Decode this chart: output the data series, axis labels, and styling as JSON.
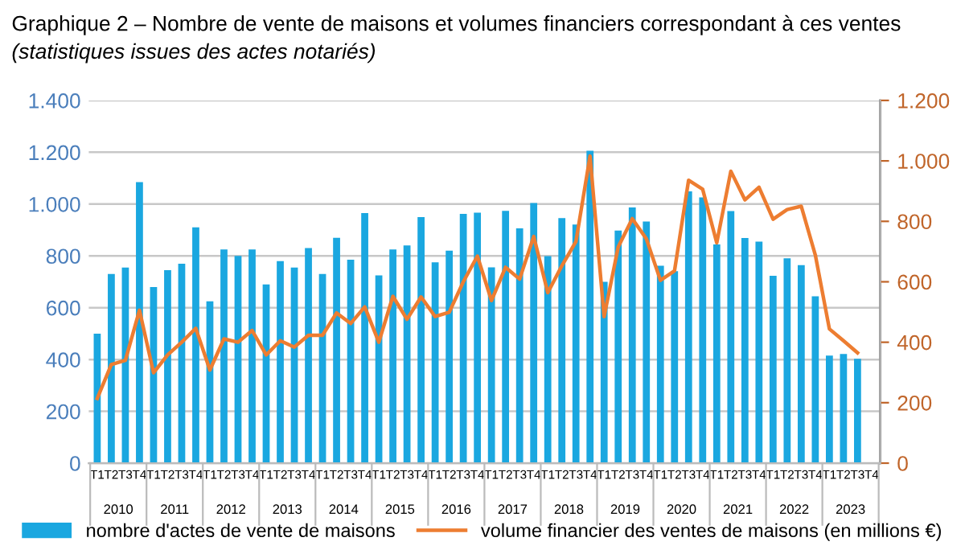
{
  "chart_data": {
    "type": "bar",
    "title": "Graphique 2 – Nombre de vente de maisons et volumes financiers correspondant à ces ventes",
    "subtitle": "(statistiques issues des actes notariés)",
    "categories": [
      "T1",
      "T2",
      "T3",
      "T4",
      "T1",
      "T2",
      "T3",
      "T4",
      "T1",
      "T2",
      "T3",
      "T4",
      "T1",
      "T2",
      "T3",
      "T4",
      "T1",
      "T2",
      "T3",
      "T4",
      "T1",
      "T2",
      "T3",
      "T4",
      "T1",
      "T2",
      "T3",
      "T4",
      "T1",
      "T2",
      "T3",
      "T4",
      "T1",
      "T2",
      "T3",
      "T4",
      "T1",
      "T2",
      "T3",
      "T4",
      "T1",
      "T2",
      "T3",
      "T4",
      "T1",
      "T2",
      "T3",
      "T4",
      "T1",
      "T2",
      "T3",
      "T4",
      "T1",
      "T2",
      "T3",
      "T4"
    ],
    "annotations": [
      "2010",
      "2011",
      "2012",
      "2013",
      "2014",
      "2015",
      "2016",
      "2017",
      "2018",
      "2019",
      "2020",
      "2021",
      "2022",
      "2023"
    ],
    "series": [
      {
        "name": "nombre d'actes de vente de maisons",
        "color": "#1aa7e0",
        "values": [
          500,
          730,
          755,
          1085,
          680,
          745,
          770,
          910,
          625,
          825,
          800,
          825,
          690,
          780,
          755,
          830,
          730,
          870,
          785,
          965,
          725,
          825,
          840,
          950,
          775,
          820,
          962,
          967,
          756,
          974,
          906,
          1004,
          799,
          946,
          921,
          1206,
          700,
          898,
          987,
          933,
          762,
          741,
          1049,
          1026,
          844,
          973,
          869,
          855,
          723,
          791,
          764,
          644,
          415,
          421,
          403,
          null
        ]
      },
      {
        "name": "volume financier des ventes de maisons (en millions €)",
        "type": "line",
        "axis": "y2",
        "color": "#ed7d31",
        "values": [
          214,
          326,
          340,
          506,
          299,
          358,
          400,
          446,
          308,
          411,
          400,
          439,
          358,
          405,
          384,
          423,
          423,
          497,
          462,
          517,
          400,
          552,
          476,
          550,
          485,
          499,
          600,
          685,
          538,
          648,
          609,
          750,
          564,
          653,
          733,
          1016,
          485,
          715,
          809,
          742,
          605,
          636,
          936,
          906,
          729,
          966,
          871,
          913,
          807,
          839,
          850,
          689,
          444,
          405,
          365,
          null
        ]
      }
    ],
    "ylim": [
      0,
      1400
    ],
    "yticks": [
      0,
      200,
      400,
      600,
      800,
      {
        "value": 1000,
        "label": "1.000"
      },
      {
        "value": 1200,
        "label": "1.200"
      },
      {
        "value": 1400,
        "label": "1.400"
      }
    ],
    "y2lim": [
      0,
      1200
    ],
    "y2ticks": [
      0,
      200,
      400,
      600,
      800,
      {
        "value": 1000,
        "label": "1.000"
      },
      {
        "value": 1200,
        "label": "1.200"
      }
    ],
    "grid": "y",
    "legend": "bottom",
    "marker": "none",
    "line_style": "solid"
  }
}
